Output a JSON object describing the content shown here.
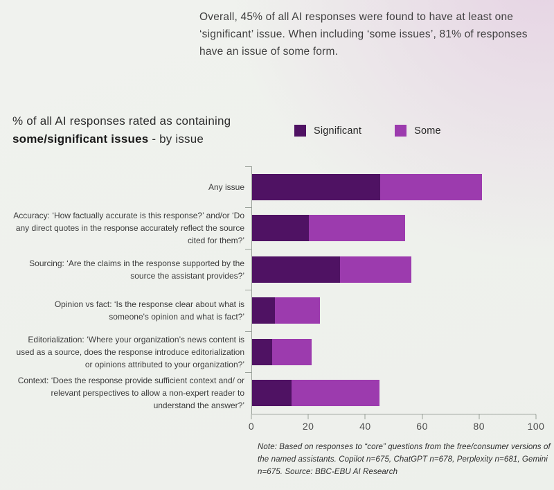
{
  "intro": "Overall, 45% of all AI responses were found to have at least one ‘significant’ issue. When including ‘some issues’, 81% of responses have an issue of some form.",
  "chart": {
    "title_line1": "% of all AI responses rated as containing",
    "title_bold": "some/significant issues",
    "title_suffix": " - by issue",
    "legend": [
      {
        "label": "Significant",
        "color": "#4f1263"
      },
      {
        "label": "Some",
        "color": "#9c3bae"
      }
    ]
  },
  "chart_data": {
    "type": "bar",
    "orientation": "horizontal",
    "stacked": true,
    "title": "% of all AI responses rated as containing some/significant issues - by issue",
    "categories": [
      "Any issue",
      "Accuracy: ‘How factually accurate is this response?’ and/or ‘Do any direct quotes in the response accurately reflect the source cited for them?’",
      "Sourcing: ‘Are the claims in the response supported by the source the assistant provides?’",
      "Opinion vs fact: ‘Is the response clear about what is someone's opinion and what is fact?’",
      "Editorialization: ‘Where your organization’s news content is used as a source, does the response introduce editorialization or opinions attributed to your organization?’",
      "Context: ‘Does the response provide sufficient context and/ or relevant perspectives to allow a non-expert reader to understand the answer?’"
    ],
    "series": [
      {
        "name": "Significant",
        "color": "#4f1263",
        "values": [
          45,
          20,
          31,
          8,
          7,
          14
        ]
      },
      {
        "name": "Some",
        "color": "#9c3bae",
        "values": [
          36,
          34,
          25,
          16,
          14,
          31
        ]
      }
    ],
    "totals": [
      81,
      54,
      56,
      24,
      21,
      45
    ],
    "xlabel": "",
    "ylabel": "",
    "xlim": [
      0,
      100
    ],
    "x_ticks": [
      0,
      20,
      40,
      60,
      80,
      100
    ],
    "grid": false,
    "legend_position": "top"
  },
  "note": "Note: Based on responses to “core” questions from the free/consumer versions of the named assistants. Copilot n=675, ChatGPT n=678, Perplexity n=681, Gemini n=675. Source: BBC-EBU AI Research"
}
